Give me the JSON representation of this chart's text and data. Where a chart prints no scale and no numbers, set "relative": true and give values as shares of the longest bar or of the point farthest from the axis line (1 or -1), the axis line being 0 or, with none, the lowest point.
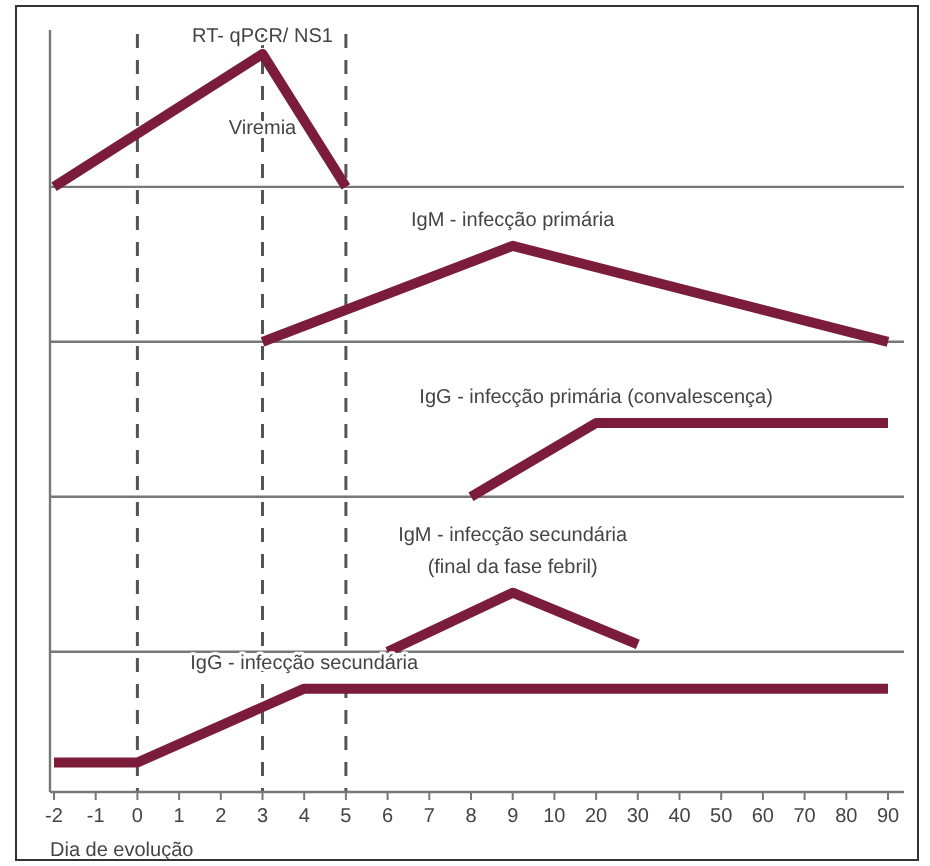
{
  "chart_data": {
    "type": "line",
    "relative": true,
    "xlabel": "Dia de evolução",
    "grid": false,
    "legend": false,
    "categories": [
      "-2",
      "-1",
      "0",
      "1",
      "2",
      "3",
      "4",
      "5",
      "6",
      "7",
      "8",
      "9",
      "10",
      "20",
      "30",
      "40",
      "50",
      "60",
      "70",
      "80",
      "90"
    ],
    "series": [
      {
        "name": "Viremia",
        "color": "#7a1c3a",
        "x": [
          "-2",
          "3",
          "5"
        ],
        "values": [
          0.82,
          1,
          0.82
        ]
      },
      {
        "name": "IgM - infecção primária",
        "color": "#7a1c3a",
        "x": [
          "3",
          "9",
          "90"
        ],
        "values": [
          0.61,
          0.74,
          0.61
        ]
      },
      {
        "name": "IgG - infecção primária (convalescença)",
        "color": "#7a1c3a",
        "x": [
          "8",
          "20",
          "90"
        ],
        "values": [
          0.4,
          0.5,
          0.5
        ]
      },
      {
        "name": "IgM - infecção secundária",
        "color": "#7a1c3a",
        "x": [
          "6",
          "9",
          "30"
        ],
        "values": [
          0.19,
          0.27,
          0.2
        ]
      },
      {
        "name": "IgG - infecção secundária",
        "color": "#7a1c3a",
        "x": [
          "-2",
          "0",
          "4",
          "90"
        ],
        "values": [
          0.04,
          0.04,
          0.14,
          0.14
        ]
      }
    ],
    "annotations": [
      {
        "text": "RT- qPCR/ NS1",
        "x": "3",
        "y": 1
      },
      {
        "text": "(final da fase febril)",
        "x": "9",
        "y": 0.27
      }
    ],
    "ref_lines": [
      {
        "axis": "x",
        "value": "0",
        "line_style": "dashed",
        "color": "#555555"
      },
      {
        "axis": "x",
        "value": "3",
        "line_style": "dashed",
        "color": "#555555"
      },
      {
        "axis": "x",
        "value": "5",
        "line_style": "dashed",
        "color": "#555555"
      },
      {
        "axis": "y",
        "value": 0.19,
        "line_style": "solid",
        "color": "#777777"
      },
      {
        "axis": "y",
        "value": 0.4,
        "line_style": "solid",
        "color": "#777777"
      },
      {
        "axis": "y",
        "value": 0.61,
        "line_style": "solid",
        "color": "#777777"
      },
      {
        "axis": "y",
        "value": 0.82,
        "line_style": "solid",
        "color": "#777777"
      }
    ]
  }
}
